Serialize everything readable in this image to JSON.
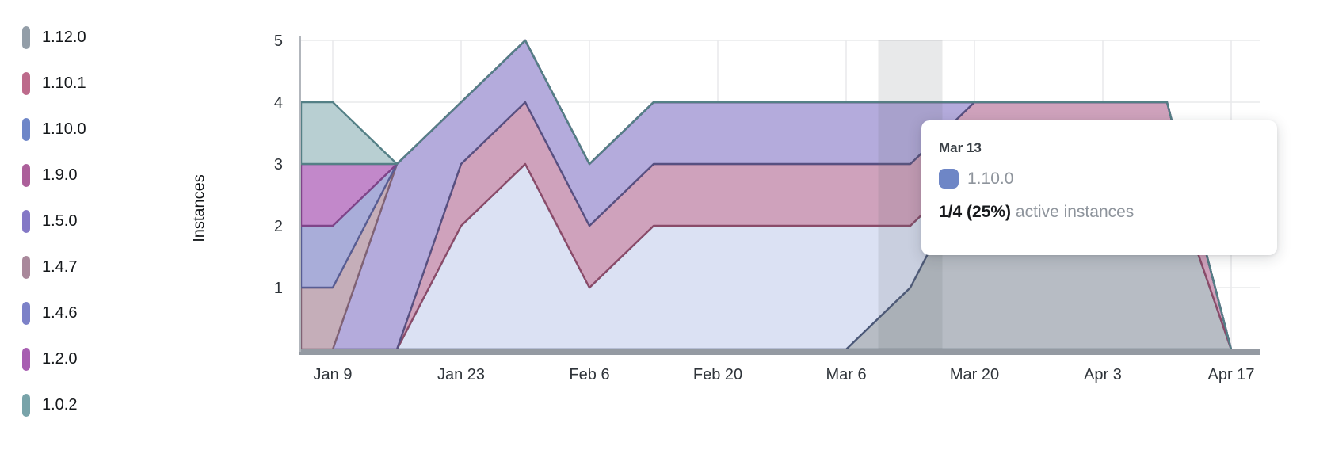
{
  "legend": {
    "items": [
      {
        "label": "1.12.0",
        "color": "#939ea8"
      },
      {
        "label": "1.10.1",
        "color": "#bd6a8b"
      },
      {
        "label": "1.10.0",
        "color": "#6e86c8"
      },
      {
        "label": "1.9.0",
        "color": "#ac5f9a"
      },
      {
        "label": "1.5.0",
        "color": "#8478c6"
      },
      {
        "label": "1.4.7",
        "color": "#a9889b"
      },
      {
        "label": "1.4.6",
        "color": "#7c81c8"
      },
      {
        "label": "1.2.0",
        "color": "#a75db1"
      },
      {
        "label": "1.0.2",
        "color": "#78a3a9"
      }
    ]
  },
  "y_axis": {
    "title": "Instances",
    "ticks": [
      "1",
      "2",
      "3",
      "4",
      "5"
    ],
    "max": 5
  },
  "x_axis": {
    "tick_labels": [
      "Jan 9",
      "Jan 23",
      "Feb 6",
      "Feb 20",
      "Mar 6",
      "Mar 20",
      "Apr 3",
      "Apr 17"
    ]
  },
  "tooltip": {
    "date": "Mar 13",
    "series_label": "1.10.0",
    "swatch_color": "#6e86c6",
    "value": "1/4 (25%)",
    "suffix": "active instances"
  },
  "chart_data": {
    "type": "area",
    "stacked": true,
    "title": "",
    "xlabel": "",
    "ylabel": "Instances",
    "ylim": [
      0,
      5
    ],
    "grid": true,
    "legend_position": "left",
    "x": [
      "Jan 2",
      "Jan 9",
      "Jan 16",
      "Jan 23",
      "Jan 30",
      "Feb 6",
      "Feb 13",
      "Feb 20",
      "Feb 27",
      "Mar 6",
      "Mar 13",
      "Mar 20",
      "Mar 27",
      "Apr 3",
      "Apr 10",
      "Apr 17"
    ],
    "hovered_x": "Mar 13",
    "hovered_index": 10,
    "series": [
      {
        "name": "1.12.0",
        "fill": "#b7bcc4",
        "stroke": "#6f7a87",
        "values": [
          0,
          0,
          0,
          0,
          0,
          0,
          0,
          0,
          0,
          0,
          1,
          3,
          3,
          3,
          3,
          0
        ]
      },
      {
        "name": "1.10.0",
        "fill": "#dbe1f3",
        "stroke": "#4b5878",
        "values": [
          0,
          0,
          0,
          2,
          3,
          1,
          2,
          2,
          2,
          2,
          1,
          0,
          0,
          0,
          0,
          0
        ]
      },
      {
        "name": "1.10.1",
        "fill": "#cfa2bc",
        "stroke": "#8a4b69",
        "values": [
          0,
          0,
          0,
          1,
          1,
          1,
          1,
          1,
          1,
          1,
          1,
          1,
          1,
          1,
          1,
          0
        ]
      },
      {
        "name": "1.5.0",
        "fill": "#b4abdc",
        "stroke": "#575081",
        "values": [
          0,
          0,
          3,
          1,
          1,
          1,
          1,
          1,
          1,
          1,
          1,
          0,
          0,
          0,
          0,
          0
        ]
      },
      {
        "name": "1.9.0",
        "fill": "#c795b8",
        "stroke": "#7e486f",
        "values": [
          0,
          0,
          0,
          0,
          0,
          0,
          0,
          0,
          0,
          0,
          0,
          0,
          0,
          0,
          0,
          0
        ]
      },
      {
        "name": "1.4.7",
        "fill": "#c5aeb9",
        "stroke": "#806274",
        "values": [
          1,
          1,
          0,
          0,
          0,
          0,
          0,
          0,
          0,
          0,
          0,
          0,
          0,
          0,
          0,
          0
        ]
      },
      {
        "name": "1.4.6",
        "fill": "#a9add9",
        "stroke": "#585d93",
        "values": [
          1,
          1,
          0,
          0,
          0,
          0,
          0,
          0,
          0,
          0,
          0,
          0,
          0,
          0,
          0,
          0
        ]
      },
      {
        "name": "1.2.0",
        "fill": "#c288ca",
        "stroke": "#7f4489",
        "values": [
          1,
          1,
          0,
          0,
          0,
          0,
          0,
          0,
          0,
          0,
          0,
          0,
          0,
          0,
          0,
          0
        ]
      },
      {
        "name": "1.0.2",
        "fill": "#b8cfd2",
        "stroke": "#548086",
        "values": [
          1,
          1,
          0,
          0,
          0,
          0,
          0,
          0,
          0,
          0,
          0,
          0,
          0,
          0,
          0,
          0
        ]
      }
    ]
  },
  "colors": {
    "grid": "#e9eaec",
    "axis_bottom": "#949aa2",
    "axis_left": "#b2b6bc",
    "tick_text": "#2f343a",
    "hover_band": "rgba(100,106,116,0.15)"
  }
}
